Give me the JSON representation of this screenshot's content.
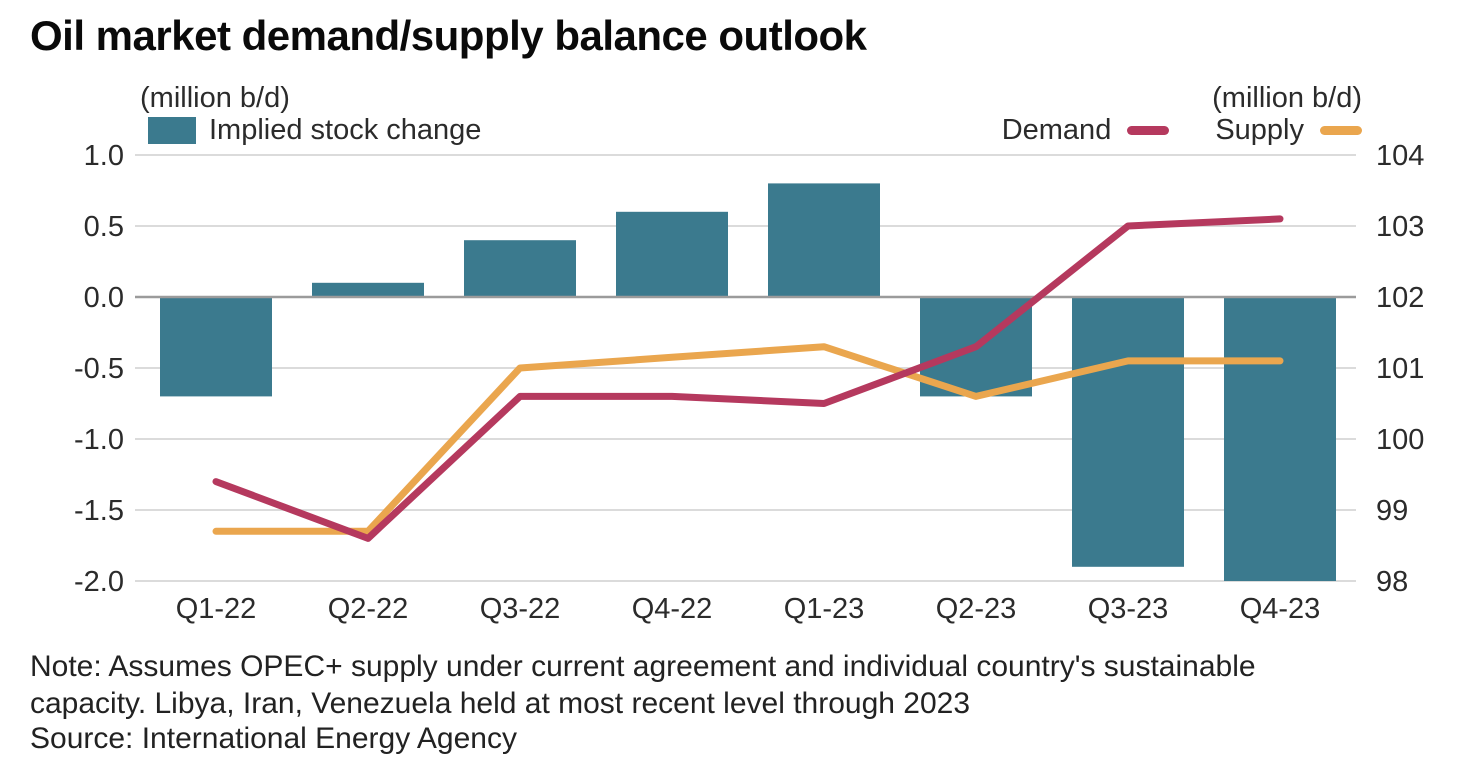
{
  "title": "Oil market demand/supply balance outlook",
  "legend": {
    "left_unit": "(million b/d)",
    "right_unit": "(million b/d)",
    "bar_label": "Implied stock change",
    "demand_label": "Demand",
    "supply_label": "Supply"
  },
  "colors": {
    "bar": "#3B7A8E",
    "demand": "#B5395E",
    "supply": "#EAA64E",
    "grid": "#DBDBDB",
    "zero_line": "#9B9B9B",
    "axis_text": "#2B2B2B"
  },
  "chart_data": {
    "type": "bar+line",
    "title": "Oil market demand/supply balance outlook",
    "categories": [
      "Q1-22",
      "Q2-22",
      "Q3-22",
      "Q4-22",
      "Q1-23",
      "Q2-23",
      "Q3-23",
      "Q4-23"
    ],
    "bar_series": {
      "name": "Implied stock change",
      "axis": "left",
      "values": [
        -0.7,
        0.1,
        0.4,
        0.6,
        0.8,
        -0.7,
        -1.9,
        -2.0
      ]
    },
    "line_series": [
      {
        "name": "Demand",
        "axis": "right",
        "values": [
          99.4,
          98.6,
          100.6,
          100.6,
          100.5,
          101.3,
          103.0,
          103.1
        ]
      },
      {
        "name": "Supply",
        "axis": "right",
        "values": [
          98.7,
          98.7,
          101.0,
          101.15,
          101.3,
          100.6,
          101.1,
          101.1
        ]
      }
    ],
    "left_axis": {
      "label": "(million b/d)",
      "min": -2.0,
      "max": 1.0,
      "ticks": [
        "1.0",
        "0.5",
        "0.0",
        "-0.5",
        "-1.0",
        "-1.5",
        "-2.0"
      ]
    },
    "right_axis": {
      "label": "(million b/d)",
      "min": 98,
      "max": 104,
      "ticks": [
        "104",
        "103",
        "102",
        "101",
        "100",
        "99",
        "98"
      ]
    },
    "grid": true,
    "legend_position": "top"
  },
  "note": "Note: Assumes OPEC+ supply under current agreement and individual country's sustainable capacity. Libya, Iran, Venezuela held at most recent level through 2023",
  "source": "Source: International Energy Agency"
}
